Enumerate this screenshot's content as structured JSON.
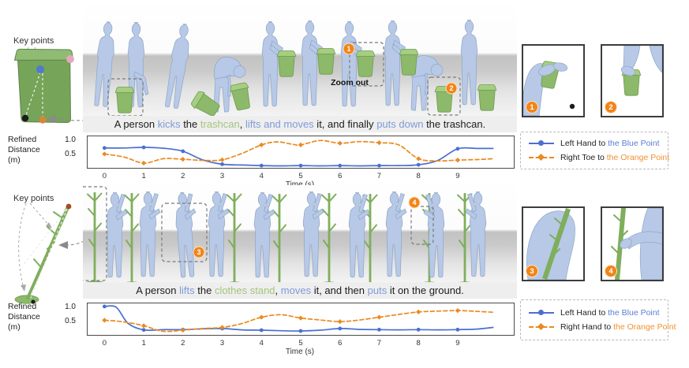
{
  "palette": {
    "text": "#1c1c1c",
    "blue_text": "#7f9bd9",
    "green_text": "#a6c47c",
    "chart_blue": "#4a6fd1",
    "chart_orange": "#ea8a1f",
    "legend_blue": "#5b7fd4",
    "legend_orange": "#f09030",
    "badge_orange": "#f28418",
    "object_green": "#8cb96a",
    "human_blue": "#b7c9e6"
  },
  "sections": [
    {
      "key_points_label": "Key points",
      "caption_parts": [
        {
          "text": "A person ",
          "color": "text"
        },
        {
          "text": "kicks",
          "color": "blue_text"
        },
        {
          "text": " the ",
          "color": "text"
        },
        {
          "text": "trashcan",
          "color": "green_text"
        },
        {
          "text": ", ",
          "color": "text"
        },
        {
          "text": "lifts and moves",
          "color": "blue_text"
        },
        {
          "text": " it, and finally ",
          "color": "text"
        },
        {
          "text": "puts down",
          "color": "blue_text"
        },
        {
          "text": " the trashcan.",
          "color": "text"
        }
      ],
      "zoom_out_label": "Zoom out",
      "badges": [
        "1",
        "2"
      ],
      "ylabel": "Refined\nDistance\n(m)",
      "yticks": [
        "1.0",
        "0.5"
      ],
      "xlabel": "Time (s)",
      "legend": [
        {
          "prefix": "Left Hand to ",
          "highlight": "the Blue Point",
          "text_color": "#5b7fd4",
          "line_color": "#4a6fd1",
          "line": "solid",
          "marker": "circle"
        },
        {
          "prefix": "Right Toe to ",
          "highlight": "the Orange Point",
          "text_color": "#f09030",
          "line_color": "#ea8a1f",
          "line": "dashed",
          "marker": "diamond"
        }
      ]
    },
    {
      "key_points_label": "Key points",
      "caption_parts": [
        {
          "text": "A person ",
          "color": "text"
        },
        {
          "text": "lifts",
          "color": "blue_text"
        },
        {
          "text": " the ",
          "color": "text"
        },
        {
          "text": "clothes stand",
          "color": "green_text"
        },
        {
          "text": ", ",
          "color": "text"
        },
        {
          "text": "moves",
          "color": "blue_text"
        },
        {
          "text": " it, and then ",
          "color": "text"
        },
        {
          "text": "puts",
          "color": "blue_text"
        },
        {
          "text": " it on the ground.",
          "color": "text"
        }
      ],
      "zoom_out_label": "",
      "badges": [
        "3",
        "4"
      ],
      "ylabel": "Refined\nDistance\n(m)",
      "yticks": [
        "1.0",
        "0.5"
      ],
      "xlabel": "Time (s)",
      "legend": [
        {
          "prefix": "Left Hand to ",
          "highlight": "the Blue Point",
          "text_color": "#5b7fd4",
          "line_color": "#4a6fd1",
          "line": "solid",
          "marker": "circle"
        },
        {
          "prefix": "Right Hand to ",
          "highlight": "the Orange Point",
          "text_color": "#f09030",
          "line_color": "#ea8a1f",
          "line": "dashed",
          "marker": "diamond"
        }
      ]
    }
  ],
  "chart_data": [
    {
      "type": "line",
      "xlabel": "Time (s)",
      "ylabel": "Refined Distance (m)",
      "xlim": [
        -0.45,
        10.45
      ],
      "ylim": [
        0,
        1.2
      ],
      "xticks": [
        0,
        1,
        2,
        3,
        4,
        5,
        6,
        7,
        8,
        9
      ],
      "ytick_values": [
        0.5,
        1.0
      ],
      "grid": false,
      "legend_position": "right",
      "series": [
        {
          "name": "Left Hand to the Blue Point",
          "color": "#4a6fd1",
          "style": "solid",
          "marker": "circle",
          "points": [
            [
              0,
              0.75
            ],
            [
              0.5,
              0.75
            ],
            [
              1,
              0.77
            ],
            [
              1.5,
              0.74
            ],
            [
              2,
              0.63
            ],
            [
              2.5,
              0.32
            ],
            [
              3,
              0.16
            ],
            [
              3.5,
              0.13
            ],
            [
              4,
              0.11
            ],
            [
              4.5,
              0.1
            ],
            [
              5,
              0.11
            ],
            [
              5.5,
              0.1
            ],
            [
              6,
              0.11
            ],
            [
              6.5,
              0.1
            ],
            [
              7,
              0.11
            ],
            [
              7.5,
              0.11
            ],
            [
              8,
              0.14
            ],
            [
              8.5,
              0.3
            ],
            [
              9,
              0.72
            ],
            [
              9.5,
              0.73
            ],
            [
              9.9,
              0.73
            ]
          ]
        },
        {
          "name": "Right Toe to the Orange Point",
          "color": "#ea8a1f",
          "style": "dashed",
          "marker": "diamond",
          "points": [
            [
              0,
              0.53
            ],
            [
              0.5,
              0.42
            ],
            [
              1,
              0.2
            ],
            [
              1.5,
              0.36
            ],
            [
              2,
              0.34
            ],
            [
              2.5,
              0.3
            ],
            [
              3,
              0.32
            ],
            [
              3.5,
              0.55
            ],
            [
              4,
              0.86
            ],
            [
              4.4,
              0.97
            ],
            [
              4.8,
              0.88
            ],
            [
              5,
              0.86
            ],
            [
              5.5,
              1.02
            ],
            [
              6,
              0.92
            ],
            [
              6.5,
              0.98
            ],
            [
              7,
              0.94
            ],
            [
              7.5,
              0.86
            ],
            [
              8,
              0.36
            ],
            [
              8.5,
              0.28
            ],
            [
              9,
              0.31
            ],
            [
              9.5,
              0.33
            ],
            [
              9.9,
              0.36
            ]
          ]
        }
      ]
    },
    {
      "type": "line",
      "xlabel": "Time (s)",
      "ylabel": "Refined Distance (m)",
      "xlim": [
        -0.45,
        10.45
      ],
      "ylim": [
        0,
        1.2
      ],
      "xticks": [
        0,
        1,
        2,
        3,
        4,
        5,
        6,
        7,
        8,
        9
      ],
      "ytick_values": [
        0.5,
        1.0
      ],
      "grid": false,
      "legend_position": "right",
      "series": [
        {
          "name": "Left Hand to the Blue Point",
          "color": "#4a6fd1",
          "style": "solid",
          "marker": "circle",
          "points": [
            [
              0,
              1.06
            ],
            [
              0.3,
              1.03
            ],
            [
              0.6,
              0.45
            ],
            [
              1,
              0.21
            ],
            [
              1.5,
              0.22
            ],
            [
              2,
              0.22
            ],
            [
              2.5,
              0.25
            ],
            [
              3,
              0.26
            ],
            [
              3.5,
              0.21
            ],
            [
              4,
              0.2
            ],
            [
              4.5,
              0.18
            ],
            [
              5,
              0.17
            ],
            [
              5.5,
              0.2
            ],
            [
              6,
              0.26
            ],
            [
              6.5,
              0.23
            ],
            [
              7,
              0.22
            ],
            [
              7.5,
              0.21
            ],
            [
              8,
              0.22
            ],
            [
              8.5,
              0.21
            ],
            [
              9,
              0.22
            ],
            [
              9.5,
              0.24
            ],
            [
              9.9,
              0.3
            ]
          ]
        },
        {
          "name": "Right Hand to the Orange Point",
          "color": "#ea8a1f",
          "style": "dashed",
          "marker": "diamond",
          "points": [
            [
              0,
              0.56
            ],
            [
              0.5,
              0.5
            ],
            [
              1,
              0.36
            ],
            [
              1.5,
              0.16
            ],
            [
              2,
              0.2
            ],
            [
              2.5,
              0.26
            ],
            [
              3,
              0.3
            ],
            [
              3.5,
              0.44
            ],
            [
              4,
              0.67
            ],
            [
              4.5,
              0.76
            ],
            [
              5,
              0.64
            ],
            [
              5.5,
              0.57
            ],
            [
              6,
              0.51
            ],
            [
              6.5,
              0.57
            ],
            [
              7,
              0.67
            ],
            [
              7.5,
              0.77
            ],
            [
              8,
              0.86
            ],
            [
              8.5,
              0.89
            ],
            [
              9,
              0.91
            ],
            [
              9.5,
              0.88
            ],
            [
              9.9,
              0.85
            ]
          ]
        }
      ]
    }
  ]
}
